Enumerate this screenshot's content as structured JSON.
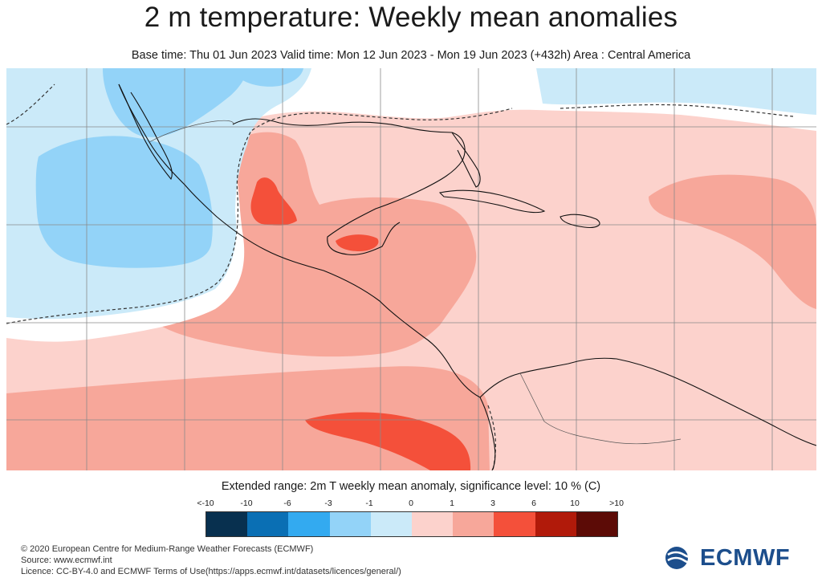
{
  "header": {
    "title": "2 m temperature: Weekly mean anomalies",
    "subtitle": "Base time: Thu 01 Jun 2023 Valid time: Mon 12 Jun 2023 - Mon 19 Jun 2023 (+432h) Area : Central America"
  },
  "legend": {
    "title": "Extended range: 2m T weekly mean anomaly, significance level: 10 % (C)",
    "labels": [
      "<-10",
      "-10",
      "-6",
      "-3",
      "-1",
      "0",
      "1",
      "3",
      "6",
      "10",
      ">10"
    ],
    "colors": [
      "#08304f",
      "#0a6fb4",
      "#33aaf0",
      "#93d3f8",
      "#cbeaf9",
      "#fcd2cc",
      "#f7a79a",
      "#f4503a",
      "#b11a0a",
      "#5c0b06"
    ]
  },
  "map": {
    "colors": {
      "ocean_warm": "#fcd2cc",
      "warm_mid": "#f7a79a",
      "warm_strong": "#f4503a",
      "cool_light": "#cbeaf9",
      "cool_mid": "#93d3f8",
      "neutral": "#ffffff"
    }
  },
  "footer": {
    "copyright": "© 2020 European Centre for Medium-Range Weather Forecasts (ECMWF)",
    "source": "Source: www.ecmwf.int",
    "licence": "Licence: CC-BY-4.0 and ECMWF Terms of Use(https://apps.ecmwf.int/datasets/licences/general/)"
  },
  "logo": {
    "text": "ECMWF"
  }
}
